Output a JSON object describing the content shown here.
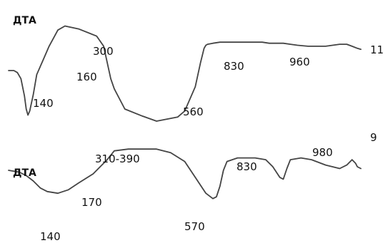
{
  "chart_data": {
    "type": "line",
    "title": "",
    "series": [
      {
        "name": "11",
        "dta_label": "ДТА",
        "labels": [
          "140",
          "160",
          "300",
          "560",
          "830",
          "960"
        ],
        "x": [
          0,
          15,
          25,
          35,
          45,
          50,
          55,
          60,
          70,
          80,
          100,
          115,
          140,
          160,
          200,
          250,
          270,
          280,
          290,
          300,
          330,
          380,
          420,
          480,
          500,
          530,
          545,
          555,
          560,
          565,
          580,
          600,
          620,
          650,
          680,
          700,
          720,
          740,
          760,
          780,
          800,
          820,
          850,
          900,
          940,
          960,
          975,
          990,
          1000
        ],
        "y": [
          0.5,
          0.5,
          0.48,
          0.42,
          0.25,
          0.12,
          0.06,
          0.1,
          0.26,
          0.46,
          0.62,
          0.74,
          0.9,
          0.94,
          0.91,
          0.84,
          0.74,
          0.58,
          0.42,
          0.32,
          0.12,
          0.05,
          0.0,
          0.04,
          0.1,
          0.34,
          0.58,
          0.72,
          0.75,
          0.76,
          0.77,
          0.78,
          0.78,
          0.78,
          0.78,
          0.78,
          0.78,
          0.77,
          0.77,
          0.77,
          0.76,
          0.75,
          0.74,
          0.74,
          0.76,
          0.76,
          0.74,
          0.72,
          0.71
        ]
      },
      {
        "name": "9",
        "dta_label": "ДТА",
        "labels": [
          "140",
          "170",
          "310-390",
          "570",
          "830",
          "980"
        ],
        "x": [
          0,
          30,
          50,
          70,
          90,
          110,
          140,
          170,
          200,
          240,
          260,
          280,
          300,
          340,
          380,
          420,
          460,
          500,
          530,
          560,
          580,
          590,
          600,
          610,
          620,
          650,
          700,
          730,
          750,
          770,
          780,
          790,
          800,
          830,
          860,
          900,
          940,
          960,
          975,
          985,
          990,
          1000
        ],
        "y": [
          0.5,
          0.48,
          0.44,
          0.38,
          0.3,
          0.26,
          0.24,
          0.28,
          0.36,
          0.46,
          0.54,
          0.62,
          0.72,
          0.74,
          0.74,
          0.74,
          0.7,
          0.6,
          0.42,
          0.24,
          0.18,
          0.2,
          0.32,
          0.5,
          0.6,
          0.64,
          0.64,
          0.62,
          0.54,
          0.42,
          0.4,
          0.52,
          0.62,
          0.64,
          0.62,
          0.56,
          0.52,
          0.56,
          0.62,
          0.58,
          0.54,
          0.52
        ]
      }
    ]
  }
}
